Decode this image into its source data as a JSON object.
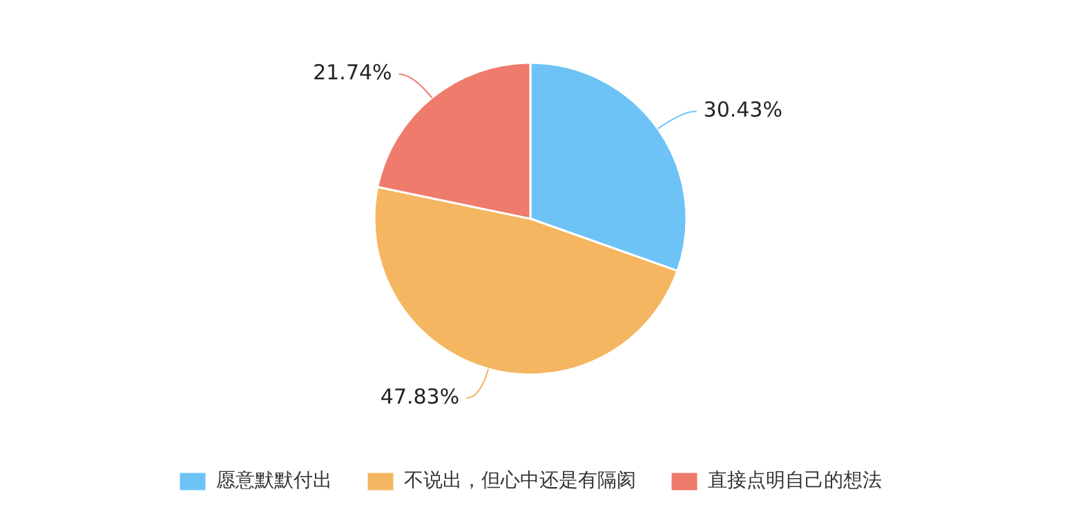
{
  "chart_data": {
    "type": "pie",
    "categories": [
      "愿意默默付出",
      "不说出，但心中还是有隔阂",
      "直接点明自己的想法"
    ],
    "values": [
      30.43,
      47.83,
      21.74
    ],
    "colors": [
      "#6ec3f6",
      "#f4b660",
      "#ef7b6c"
    ],
    "value_labels": [
      "30.43%",
      "47.83%",
      "21.74%"
    ],
    "legend": "bottom"
  }
}
